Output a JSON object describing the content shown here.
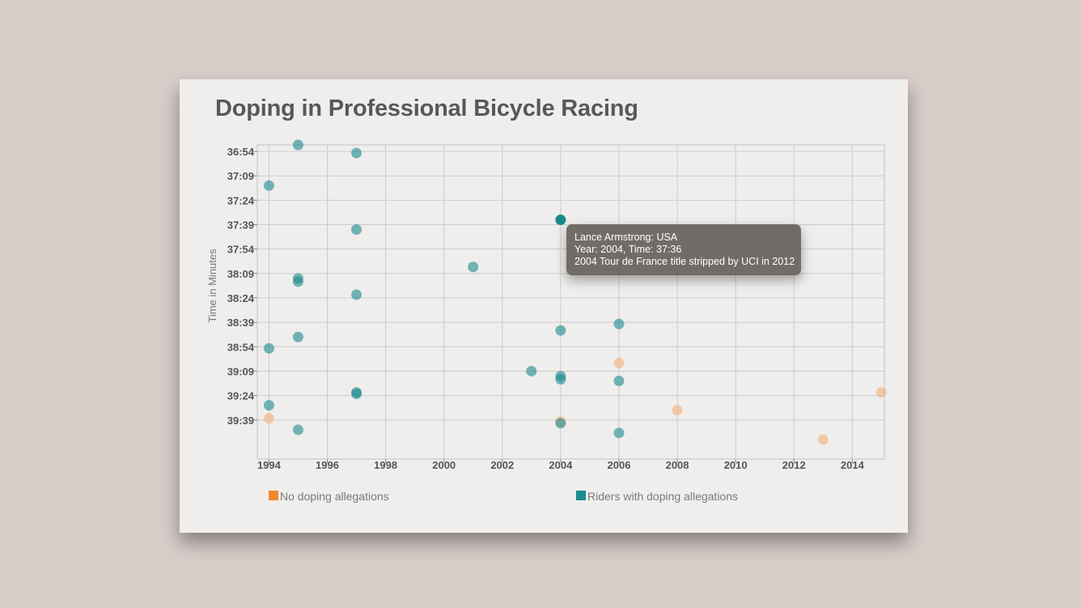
{
  "title": "Doping in Professional Bicycle Racing",
  "chart_data": {
    "type": "scatter",
    "title": "Doping in Professional Bicycle Racing",
    "xlabel": "",
    "ylabel": "Time in Minutes",
    "xlim": [
      1993.6,
      2015.1
    ],
    "ylim": [
      "36:50",
      "40:03"
    ],
    "x_ticks": [
      "1994",
      "1996",
      "1998",
      "2000",
      "2002",
      "2004",
      "2006",
      "2008",
      "2010",
      "2012",
      "2014"
    ],
    "y_ticks": [
      "36:54",
      "37:09",
      "37:24",
      "37:39",
      "37:54",
      "38:09",
      "38:24",
      "38:39",
      "38:54",
      "39:09",
      "39:24",
      "39:39"
    ],
    "grid": true,
    "legend_position": "bottom",
    "series": [
      {
        "name": "No doping allegations",
        "color": "#f0b07a",
        "points": [
          {
            "x": 1994,
            "y": "39:38"
          },
          {
            "x": 2004,
            "y": "39:40"
          },
          {
            "x": 2006,
            "y": "39:04"
          },
          {
            "x": 2008,
            "y": "39:33"
          },
          {
            "x": 2013,
            "y": "39:51"
          },
          {
            "x": 2015,
            "y": "39:22"
          }
        ]
      },
      {
        "name": "Riders with doping allegations",
        "color": "#1b8a8f",
        "points": [
          {
            "x": 1995,
            "y": "36:50"
          },
          {
            "x": 1997,
            "y": "36:55"
          },
          {
            "x": 1994,
            "y": "37:15"
          },
          {
            "x": 2004,
            "y": "37:36"
          },
          {
            "x": 1997,
            "y": "37:42"
          },
          {
            "x": 2001,
            "y": "38:05"
          },
          {
            "x": 1995,
            "y": "38:14"
          },
          {
            "x": 1995,
            "y": "38:12"
          },
          {
            "x": 1997,
            "y": "38:22"
          },
          {
            "x": 2006,
            "y": "38:40"
          },
          {
            "x": 2004,
            "y": "38:44"
          },
          {
            "x": 1995,
            "y": "38:48"
          },
          {
            "x": 1994,
            "y": "38:55"
          },
          {
            "x": 2003,
            "y": "39:09"
          },
          {
            "x": 2004,
            "y": "39:12"
          },
          {
            "x": 2004,
            "y": "39:14"
          },
          {
            "x": 2006,
            "y": "39:15"
          },
          {
            "x": 1997,
            "y": "39:23"
          },
          {
            "x": 1997,
            "y": "39:22"
          },
          {
            "x": 1994,
            "y": "39:30"
          },
          {
            "x": 2004,
            "y": "39:41"
          },
          {
            "x": 1995,
            "y": "39:45"
          },
          {
            "x": 2006,
            "y": "39:47"
          }
        ]
      }
    ],
    "tooltip": {
      "line1": "Lance Armstrong: USA",
      "line2": "Year: 2004, Time: 37:36",
      "line3": "2004 Tour de France title stripped by UCI in 2012"
    }
  }
}
